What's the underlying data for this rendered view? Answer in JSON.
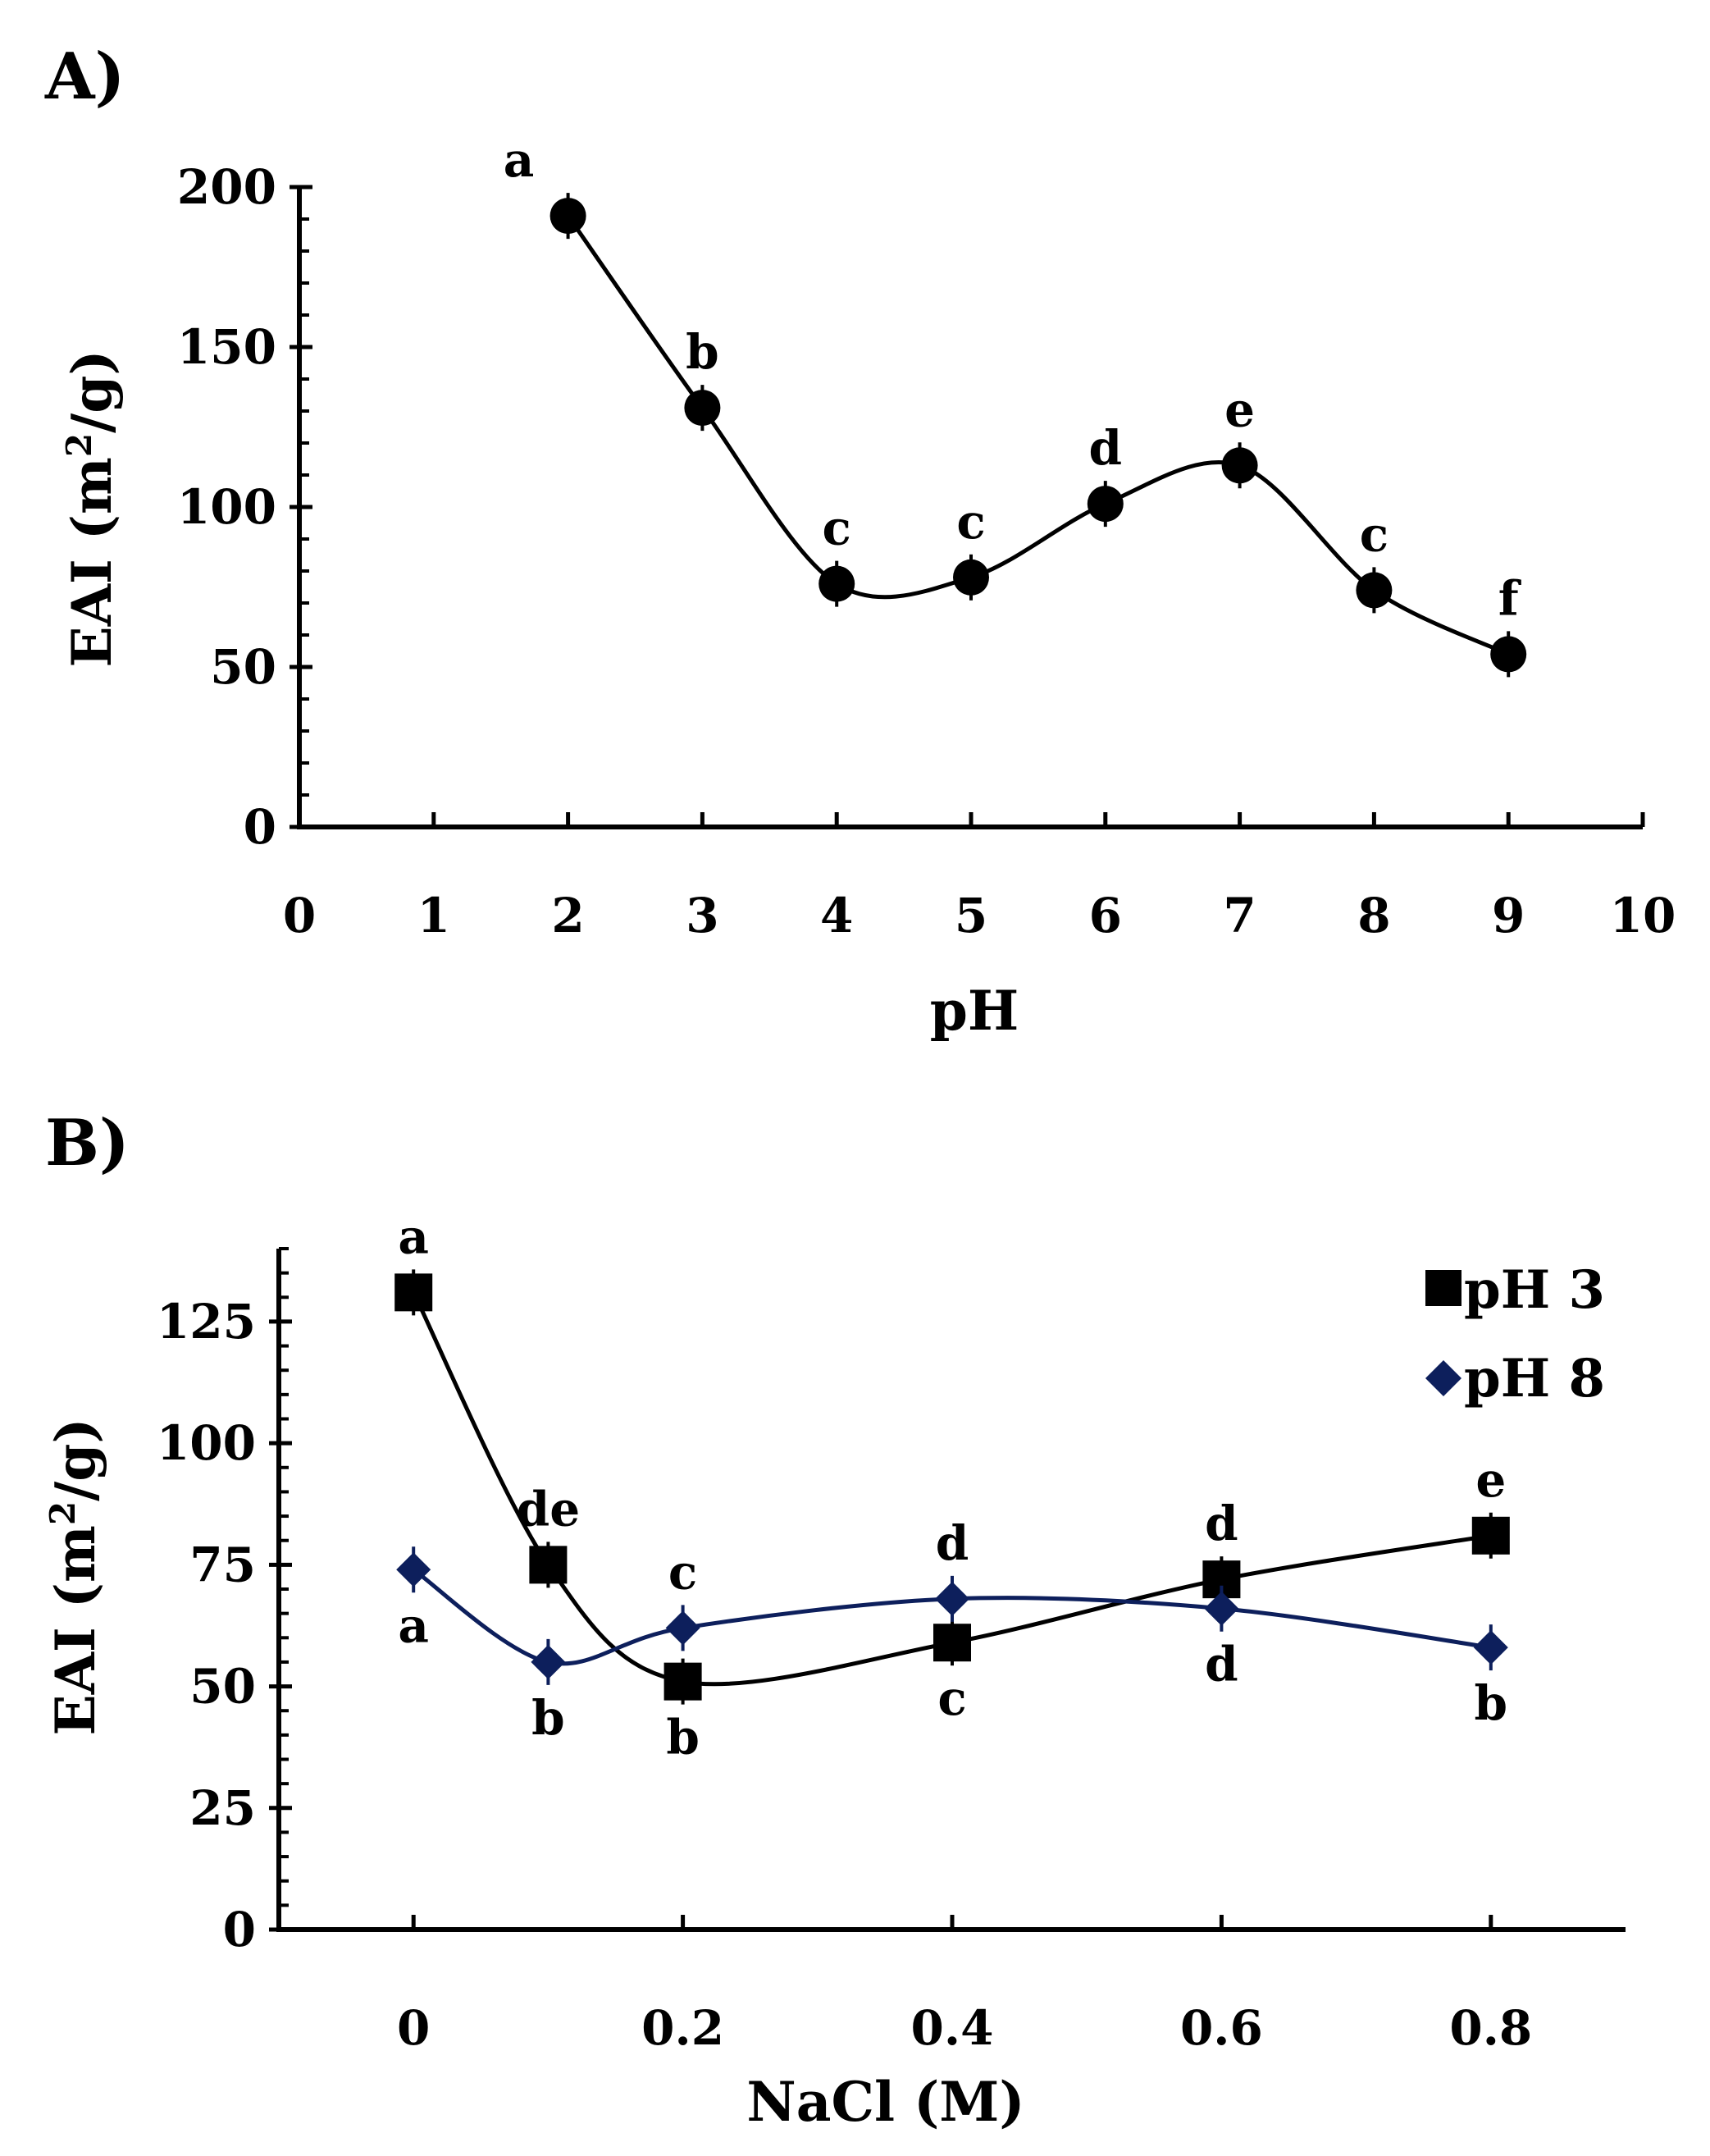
{
  "colors": {
    "ph3": "#000000",
    "ph8": "#0d1f5c",
    "axis": "#000000"
  },
  "chart_data": [
    {
      "type": "line",
      "panel_label": "A)",
      "xlabel": "pH",
      "ylabel_main": "EAI (m",
      "ylabel_sup": "2",
      "ylabel_tail": "/g)",
      "xlim": [
        0,
        10
      ],
      "ylim": [
        0,
        200
      ],
      "xticks": [
        0,
        1,
        2,
        3,
        4,
        5,
        6,
        7,
        8,
        9,
        10
      ],
      "yticks": [
        0,
        50,
        100,
        150,
        200
      ],
      "series": [
        {
          "name": "EAI",
          "marker": "circle",
          "color": "#000000",
          "x": [
            2,
            3,
            4,
            5,
            6,
            7,
            8,
            9
          ],
          "values": [
            191,
            131,
            76,
            78,
            101,
            113,
            74,
            54
          ],
          "letters": [
            "a",
            "b",
            "c",
            "c",
            "d",
            "e",
            "c",
            "f"
          ]
        }
      ]
    },
    {
      "type": "line",
      "panel_label": "B)",
      "xlabel": "NaCl (M)",
      "ylabel_main": "EAI (m",
      "ylabel_sup": "2",
      "ylabel_tail": "/g)",
      "xlim": [
        -0.1,
        0.9
      ],
      "ylim": [
        0,
        140
      ],
      "xticks": [
        0,
        0.2,
        0.4,
        0.6,
        0.8
      ],
      "xtick_labels": [
        "0",
        "0.2",
        "0.4",
        "0.6",
        "0.8"
      ],
      "yticks": [
        0,
        25,
        50,
        75,
        100,
        125
      ],
      "legend_position": "top-right",
      "series": [
        {
          "name": "pH 3",
          "marker": "square",
          "color": "#000000",
          "x": [
            0,
            0.1,
            0.2,
            0.4,
            0.6,
            0.8
          ],
          "values": [
            131,
            75,
            51,
            59,
            72,
            81
          ],
          "letters": [
            "a",
            "de",
            "b",
            "c",
            "d",
            "e"
          ],
          "letter_side": [
            "above",
            "above",
            "below",
            "below",
            "above",
            "above"
          ]
        },
        {
          "name": "pH 8",
          "marker": "diamond",
          "color": "#0d1f5c",
          "x": [
            0,
            0.1,
            0.2,
            0.4,
            0.6,
            0.8
          ],
          "values": [
            74,
            55,
            62,
            68,
            66,
            58
          ],
          "letters": [
            "a",
            "b",
            "c",
            "d",
            "d",
            "b"
          ],
          "letter_side": [
            "below",
            "below",
            "above",
            "above",
            "below",
            "below"
          ]
        }
      ]
    }
  ]
}
